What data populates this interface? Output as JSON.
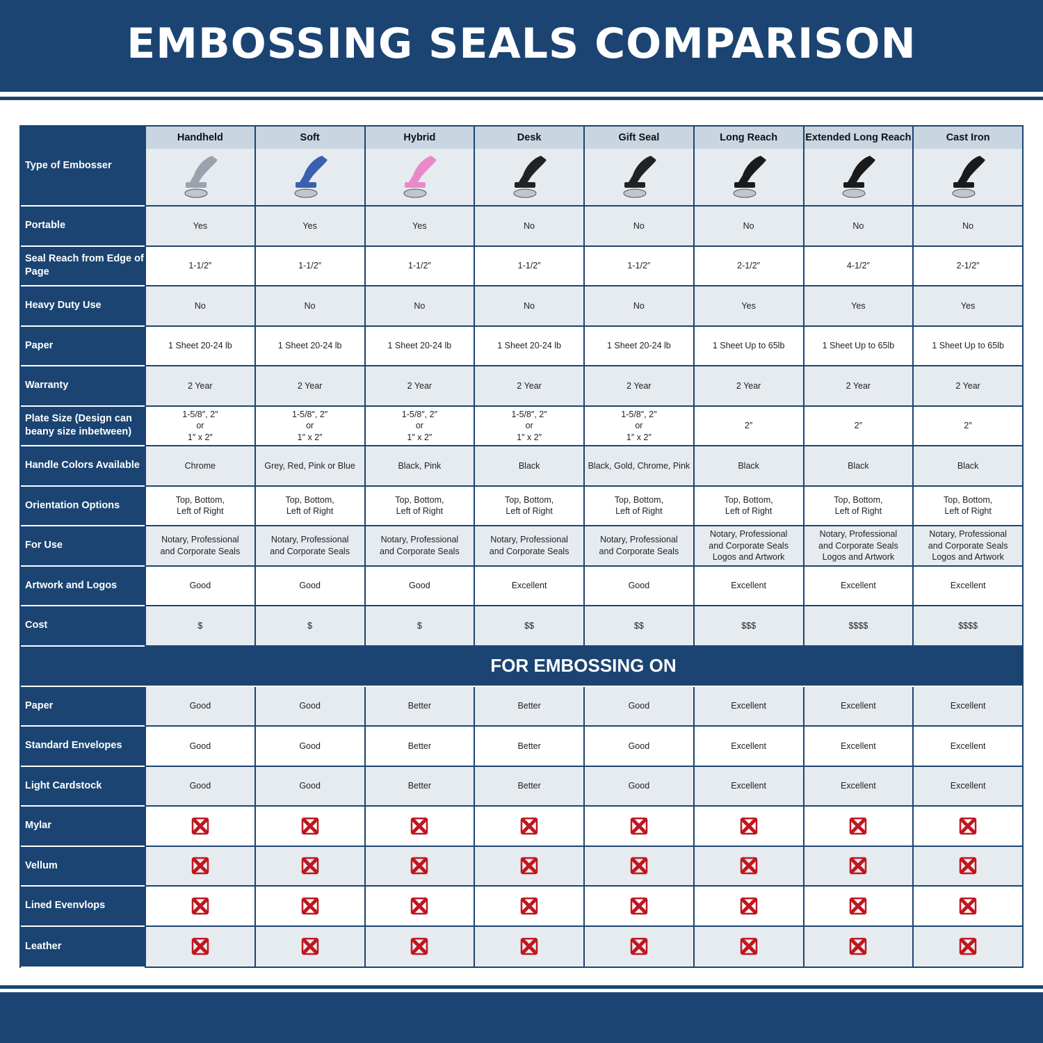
{
  "title": "EMBOSSING SEALS COMPARISON",
  "colors": {
    "brand_blue": "#1b4472",
    "row_shade": "#e6ebf0",
    "header_shade": "#c9d5e1",
    "cross_red": "#c0161f"
  },
  "header": {
    "label": "Type of Embosser",
    "columns": [
      {
        "name": "Handheld",
        "image": "chrome-handheld-embosser",
        "tint": "#9aa3ad"
      },
      {
        "name": "Soft",
        "image": "soft-embossers-blue-red-grey",
        "tint": "#3a5fb0"
      },
      {
        "name": "Hybrid",
        "image": "hybrid-embossers-pink-black",
        "tint": "#e88ac8"
      },
      {
        "name": "Desk",
        "image": "desk-embosser",
        "tint": "#222"
      },
      {
        "name": "Gift Seal",
        "image": "gift-seal-embossers",
        "tint": "#222"
      },
      {
        "name": "Long Reach",
        "image": "long-reach-embosser",
        "tint": "#1a1a1a"
      },
      {
        "name": "Extended Long Reach",
        "image": "extended-long-reach-embossers",
        "tint": "#1a1a1a"
      },
      {
        "name": "Cast Iron",
        "image": "cast-iron-embosser",
        "tint": "#1a1a1a"
      }
    ]
  },
  "rows": [
    {
      "label": "Portable",
      "values": [
        "Yes",
        "Yes",
        "Yes",
        "No",
        "No",
        "No",
        "No",
        "No"
      ]
    },
    {
      "label": "Seal Reach from Edge of Page",
      "values": [
        "1-1/2″",
        "1-1/2″",
        "1-1/2″",
        "1-1/2″",
        "1-1/2″",
        "2-1/2″",
        "4-1/2″",
        "2-1/2″"
      ]
    },
    {
      "label": "Heavy Duty Use",
      "values": [
        "No",
        "No",
        "No",
        "No",
        "No",
        "Yes",
        "Yes",
        "Yes"
      ]
    },
    {
      "label": "Paper",
      "values": [
        "1 Sheet 20-24 lb",
        "1 Sheet 20-24 lb",
        "1 Sheet 20-24 lb",
        "1 Sheet 20-24 lb",
        "1 Sheet 20-24 lb",
        "1 Sheet Up to 65lb",
        "1 Sheet Up to 65lb",
        "1 Sheet Up to 65lb"
      ]
    },
    {
      "label": "Warranty",
      "values": [
        "2 Year",
        "2 Year",
        "2 Year",
        "2 Year",
        "2 Year",
        "2 Year",
        "2 Year",
        "2 Year"
      ]
    },
    {
      "label": "Plate Size (Design can beany size inbetween)",
      "values": [
        "1-5/8″, 2″\nor\n1″ x 2″",
        "1-5/8″, 2″\nor\n1″ x 2″",
        "1-5/8″, 2″\nor\n1″ x 2″",
        "1-5/8″, 2″\nor\n1″ x 2″",
        "1-5/8″, 2″\nor\n1″ x 2″",
        "2″",
        "2″",
        "2″"
      ]
    },
    {
      "label": "Handle Colors Available",
      "values": [
        "Chrome",
        "Grey, Red, Pink or Blue",
        "Black, Pink",
        "Black",
        "Black, Gold, Chrome, Pink",
        "Black",
        "Black",
        "Black"
      ]
    },
    {
      "label": "Orientation Options",
      "values": [
        "Top, Bottom,\nLeft of Right",
        "Top, Bottom,\nLeft of Right",
        "Top, Bottom,\nLeft of Right",
        "Top, Bottom,\nLeft of Right",
        "Top, Bottom,\nLeft of Right",
        "Top, Bottom,\nLeft of Right",
        "Top, Bottom,\nLeft of Right",
        "Top, Bottom,\nLeft of Right"
      ]
    },
    {
      "label": "For Use",
      "values": [
        "Notary, Professional\nand Corporate Seals",
        "Notary, Professional\nand Corporate Seals",
        "Notary, Professional\nand Corporate Seals",
        "Notary, Professional\nand Corporate Seals",
        "Notary, Professional\nand Corporate Seals",
        "Notary, Professional\nand Corporate Seals\nLogos and Artwork",
        "Notary, Professional\nand Corporate Seals\nLogos and Artwork",
        "Notary, Professional\nand Corporate Seals\nLogos and Artwork"
      ]
    },
    {
      "label": "Artwork and Logos",
      "values": [
        "Good",
        "Good",
        "Good",
        "Excellent",
        "Good",
        "Excellent",
        "Excellent",
        "Excellent"
      ]
    },
    {
      "label": "Cost",
      "values": [
        "$",
        "$",
        "$",
        "$$",
        "$$",
        "$$$",
        "$$$$",
        "$$$$"
      ]
    }
  ],
  "section_title": "FOR EMBOSSING ON",
  "embossing_rows": [
    {
      "label": "Paper",
      "values": [
        "Good",
        "Good",
        "Better",
        "Better",
        "Good",
        "Excellent",
        "Excellent",
        "Excellent"
      ]
    },
    {
      "label": "Standard Envelopes",
      "values": [
        "Good",
        "Good",
        "Better",
        "Better",
        "Good",
        "Excellent",
        "Excellent",
        "Excellent"
      ]
    },
    {
      "label": "Light Cardstock",
      "values": [
        "Good",
        "Good",
        "Better",
        "Better",
        "Good",
        "Excellent",
        "Excellent",
        "Excellent"
      ]
    },
    {
      "label": "Mylar",
      "values": [
        "x",
        "x",
        "x",
        "x",
        "x",
        "x",
        "x",
        "x"
      ]
    },
    {
      "label": "Vellum",
      "values": [
        "x",
        "x",
        "x",
        "x",
        "x",
        "x",
        "x",
        "x"
      ]
    },
    {
      "label": "Lined Evenvlops",
      "values": [
        "x",
        "x",
        "x",
        "x",
        "x",
        "x",
        "x",
        "x"
      ]
    },
    {
      "label": "Leather",
      "values": [
        "x",
        "x",
        "x",
        "x",
        "x",
        "x",
        "x",
        "x"
      ]
    }
  ]
}
